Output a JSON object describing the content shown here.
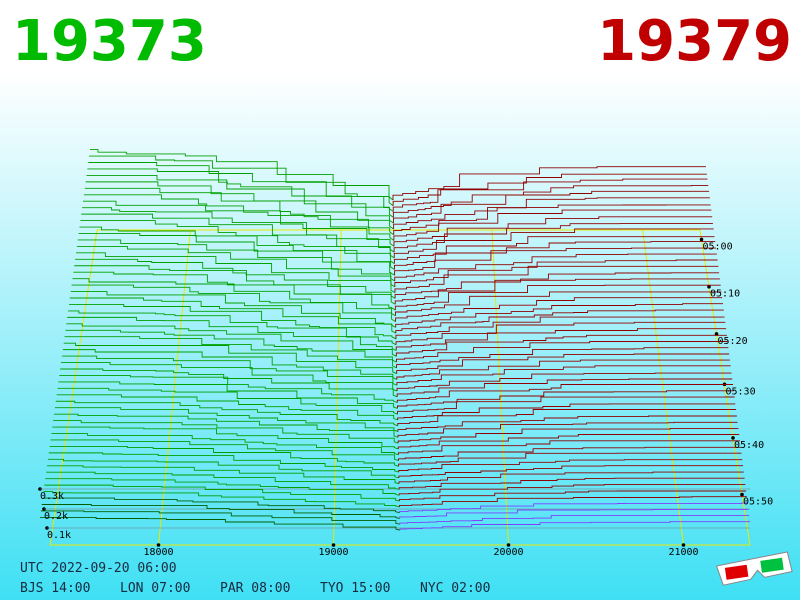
{
  "header": {
    "bid": "19373",
    "ask": "19379"
  },
  "price_axis": [
    "18000",
    "19000",
    "20000",
    "21000"
  ],
  "volume_axis": [
    "0.3k",
    "0.2k",
    "0.1k"
  ],
  "time_axis": [
    "05:00",
    "05:10",
    "05:20",
    "05:30",
    "05:40",
    "05:50"
  ],
  "clock": {
    "utc": "UTC 2022-09-20 06:00",
    "zones": [
      "BJS 14:00",
      "LON 07:00",
      "PAR 08:00",
      "TYO 15:00",
      "NYC 02:00"
    ]
  }
}
